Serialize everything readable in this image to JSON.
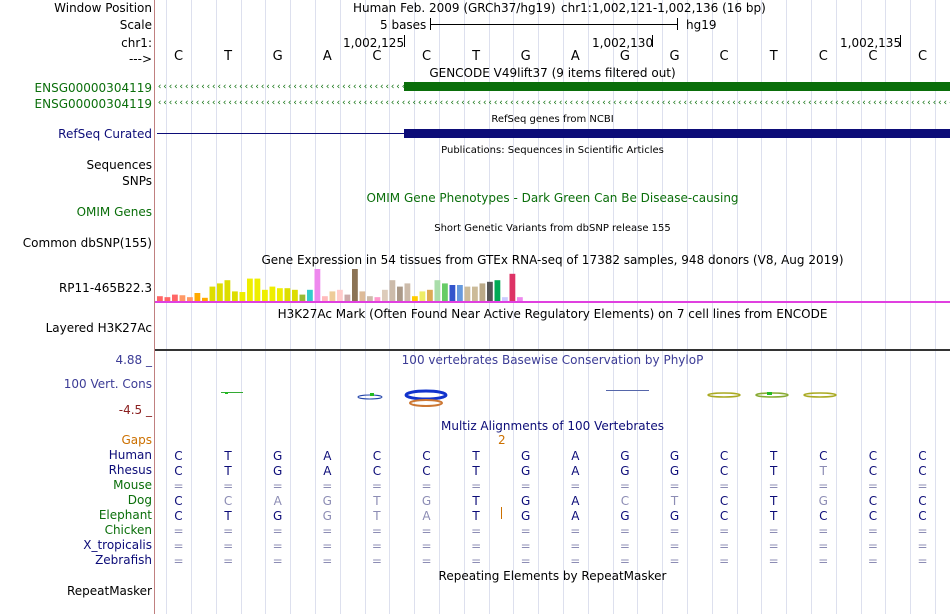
{
  "labels": {
    "window_position": "Window Position",
    "scale": "Scale",
    "chr": "chr1:",
    "arrow": "--->",
    "gencode_1": "ENSG00000304119",
    "gencode_2": "ENSG00000304119",
    "refseq": "RefSeq Curated",
    "sequences": "Sequences",
    "snps": "SNPs",
    "omim": "OMIM Genes",
    "dbsnp": "Common dbSNP(155)",
    "gtex": "RP11-465B22.3",
    "h3k27ac": "Layered H3K27Ac",
    "cons_top": "4.88 _",
    "cons": "100 Vert. Cons",
    "cons_bottom": "-4.5 _",
    "gaps": "Gaps",
    "repeatmasker": "RepeatMasker"
  },
  "header": {
    "assembly": "Human Feb. 2009 (GRCh37/hg19)",
    "position": "chr1:1,002,121-1,002,136 (16 bp)",
    "scale_text": "5 bases",
    "scale_db": "hg19",
    "coord_1": "1,002,125",
    "coord_2": "1,002,130",
    "coord_3": "1,002,135"
  },
  "ruler_bases": [
    "C",
    "T",
    "G",
    "A",
    "C",
    "C",
    "T",
    "G",
    "A",
    "G",
    "G",
    "C",
    "T",
    "C",
    "C",
    "C"
  ],
  "tracks": {
    "gencode_title": "GENCODE V49lift37 (9 items filtered out)",
    "refseq_title": "RefSeq genes from NCBI",
    "pubs_title": "Publications: Sequences in Scientific Articles",
    "omim_title": "OMIM Gene Phenotypes - Dark Green Can Be Disease-causing",
    "dbsnp_title": "Short Genetic Variants from dbSNP release 155",
    "gtex_title": "Gene Expression in 54 tissues from GTEx RNA-seq of 17382 samples, 948 donors (V8, Aug 2019)",
    "h3k27ac_title": "H3K27Ac Mark (Often Found Near Active Regulatory Elements) on 7 cell lines from ENCODE",
    "phylop_title": "100 vertebrates Basewise Conservation by PhyloP",
    "multiz_title": "Multiz Alignments of 100 Vertebrates",
    "gap_count": "2",
    "repeat_title": "Repeating Elements by RepeatMasker"
  },
  "colors": {
    "gencode": "#0a6e0a",
    "refseq": "#0c0c78",
    "omim": "#0a6e0a",
    "phylop": "#3c3c96",
    "multiz": "#0c0c78",
    "gaps": "#cc7000",
    "h3k27ac_line": "#e040e0"
  },
  "species": [
    {
      "name": "Human",
      "color": "#0c0c78",
      "seq": [
        "C",
        "T",
        "G",
        "A",
        "C",
        "C",
        "T",
        "G",
        "A",
        "G",
        "G",
        "C",
        "T",
        "C",
        "C",
        "C"
      ],
      "dim": []
    },
    {
      "name": "Rhesus",
      "color": "#0c0c78",
      "seq": [
        "C",
        "T",
        "G",
        "A",
        "C",
        "C",
        "T",
        "G",
        "A",
        "G",
        "G",
        "C",
        "T",
        "T",
        "C",
        "C"
      ],
      "dim": [
        13
      ]
    },
    {
      "name": "Mouse",
      "color": "#0a6e0a",
      "seq": [
        "=",
        "=",
        "=",
        "=",
        "=",
        "=",
        "=",
        "=",
        "=",
        "=",
        "=",
        "=",
        "=",
        "=",
        "=",
        "="
      ],
      "dim": []
    },
    {
      "name": "Dog",
      "color": "#0a6e0a",
      "seq": [
        "C",
        "C",
        "A",
        "G",
        "T",
        "G",
        "T",
        "G",
        "A",
        "C",
        "T",
        "C",
        "T",
        "G",
        "C",
        "C"
      ],
      "dim": [
        1,
        2,
        3,
        4,
        5,
        9,
        10,
        13
      ]
    },
    {
      "name": "Elephant",
      "color": "#0a6e0a",
      "seq": [
        "C",
        "T",
        "G",
        "G",
        "T",
        "A",
        "T",
        "G",
        "A",
        "G",
        "G",
        "C",
        "T",
        "C",
        "C",
        "C"
      ],
      "dim": [
        3,
        4,
        5
      ]
    },
    {
      "name": "Chicken",
      "color": "#0a6e0a",
      "seq": [
        "=",
        "=",
        "=",
        "=",
        "=",
        "=",
        "=",
        "=",
        "=",
        "=",
        "=",
        "=",
        "=",
        "=",
        "=",
        "="
      ],
      "dim": []
    },
    {
      "name": "X_tropicalis",
      "color": "#0c0c78",
      "seq": [
        "=",
        "=",
        "=",
        "=",
        "=",
        "=",
        "=",
        "=",
        "=",
        "=",
        "=",
        "=",
        "=",
        "=",
        "=",
        "="
      ],
      "dim": []
    },
    {
      "name": "Zebrafish",
      "color": "#0c0c78",
      "seq": [
        "=",
        "=",
        "=",
        "=",
        "=",
        "=",
        "=",
        "=",
        "=",
        "=",
        "=",
        "=",
        "=",
        "=",
        "=",
        "="
      ],
      "dim": []
    }
  ],
  "gtex_bars": [
    {
      "value": 0.15,
      "color": "#ff6666"
    },
    {
      "value": 0.12,
      "color": "#ff6666"
    },
    {
      "value": 0.2,
      "color": "#ff6666"
    },
    {
      "value": 0.18,
      "color": "#ff9966"
    },
    {
      "value": 0.12,
      "color": "#ff9966"
    },
    {
      "value": 0.25,
      "color": "#ffaa00"
    },
    {
      "value": 0.1,
      "color": "#ffaa00"
    },
    {
      "value": 0.45,
      "color": "#dddd00"
    },
    {
      "value": 0.55,
      "color": "#dddd00"
    },
    {
      "value": 0.65,
      "color": "#dddd00"
    },
    {
      "value": 0.3,
      "color": "#dddd00"
    },
    {
      "value": 0.28,
      "color": "#eeee00"
    },
    {
      "value": 0.7,
      "color": "#eeee00"
    },
    {
      "value": 0.7,
      "color": "#eeee00"
    },
    {
      "value": 0.35,
      "color": "#eeee00"
    },
    {
      "value": 0.45,
      "color": "#eeee00"
    },
    {
      "value": 0.4,
      "color": "#eeee00"
    },
    {
      "value": 0.4,
      "color": "#dddd00"
    },
    {
      "value": 0.35,
      "color": "#dddd00"
    },
    {
      "value": 0.2,
      "color": "#99bb33"
    },
    {
      "value": 0.35,
      "color": "#33cccc"
    },
    {
      "value": 1.0,
      "color": "#ee88ee"
    },
    {
      "value": 0.15,
      "color": "#ffbbbb"
    },
    {
      "value": 0.3,
      "color": "#eecc99"
    },
    {
      "value": 0.35,
      "color": "#ffcccc"
    },
    {
      "value": 0.2,
      "color": "#ccaaaa"
    },
    {
      "value": 1.0,
      "color": "#8b7355"
    },
    {
      "value": 0.3,
      "color": "#ddbb99"
    },
    {
      "value": 0.15,
      "color": "#ccbbaa"
    },
    {
      "value": 0.12,
      "color": "#ff99cc"
    },
    {
      "value": 0.35,
      "color": "#ddccbb"
    },
    {
      "value": 0.65,
      "color": "#ccbbaa"
    },
    {
      "value": 0.45,
      "color": "#aa9988"
    },
    {
      "value": 0.55,
      "color": "#ccbbaa"
    },
    {
      "value": 0.15,
      "color": "#ffcc00"
    },
    {
      "value": 0.3,
      "color": "#eeee66"
    },
    {
      "value": 0.35,
      "color": "#ddaa55"
    },
    {
      "value": 0.65,
      "color": "#aaddaa"
    },
    {
      "value": 0.55,
      "color": "#66cc66"
    },
    {
      "value": 0.5,
      "color": "#3355cc"
    },
    {
      "value": 0.5,
      "color": "#6699dd"
    },
    {
      "value": 0.45,
      "color": "#ccbb99"
    },
    {
      "value": 0.45,
      "color": "#ccbb99"
    },
    {
      "value": 0.55,
      "color": "#bbaa88"
    },
    {
      "value": 0.6,
      "color": "#555555"
    },
    {
      "value": 0.65,
      "color": "#00aa55"
    },
    {
      "value": 0.12,
      "color": "#ccccff"
    },
    {
      "value": 0.85,
      "color": "#dd3366"
    },
    {
      "value": 0.12,
      "color": "#ee88ee"
    }
  ]
}
